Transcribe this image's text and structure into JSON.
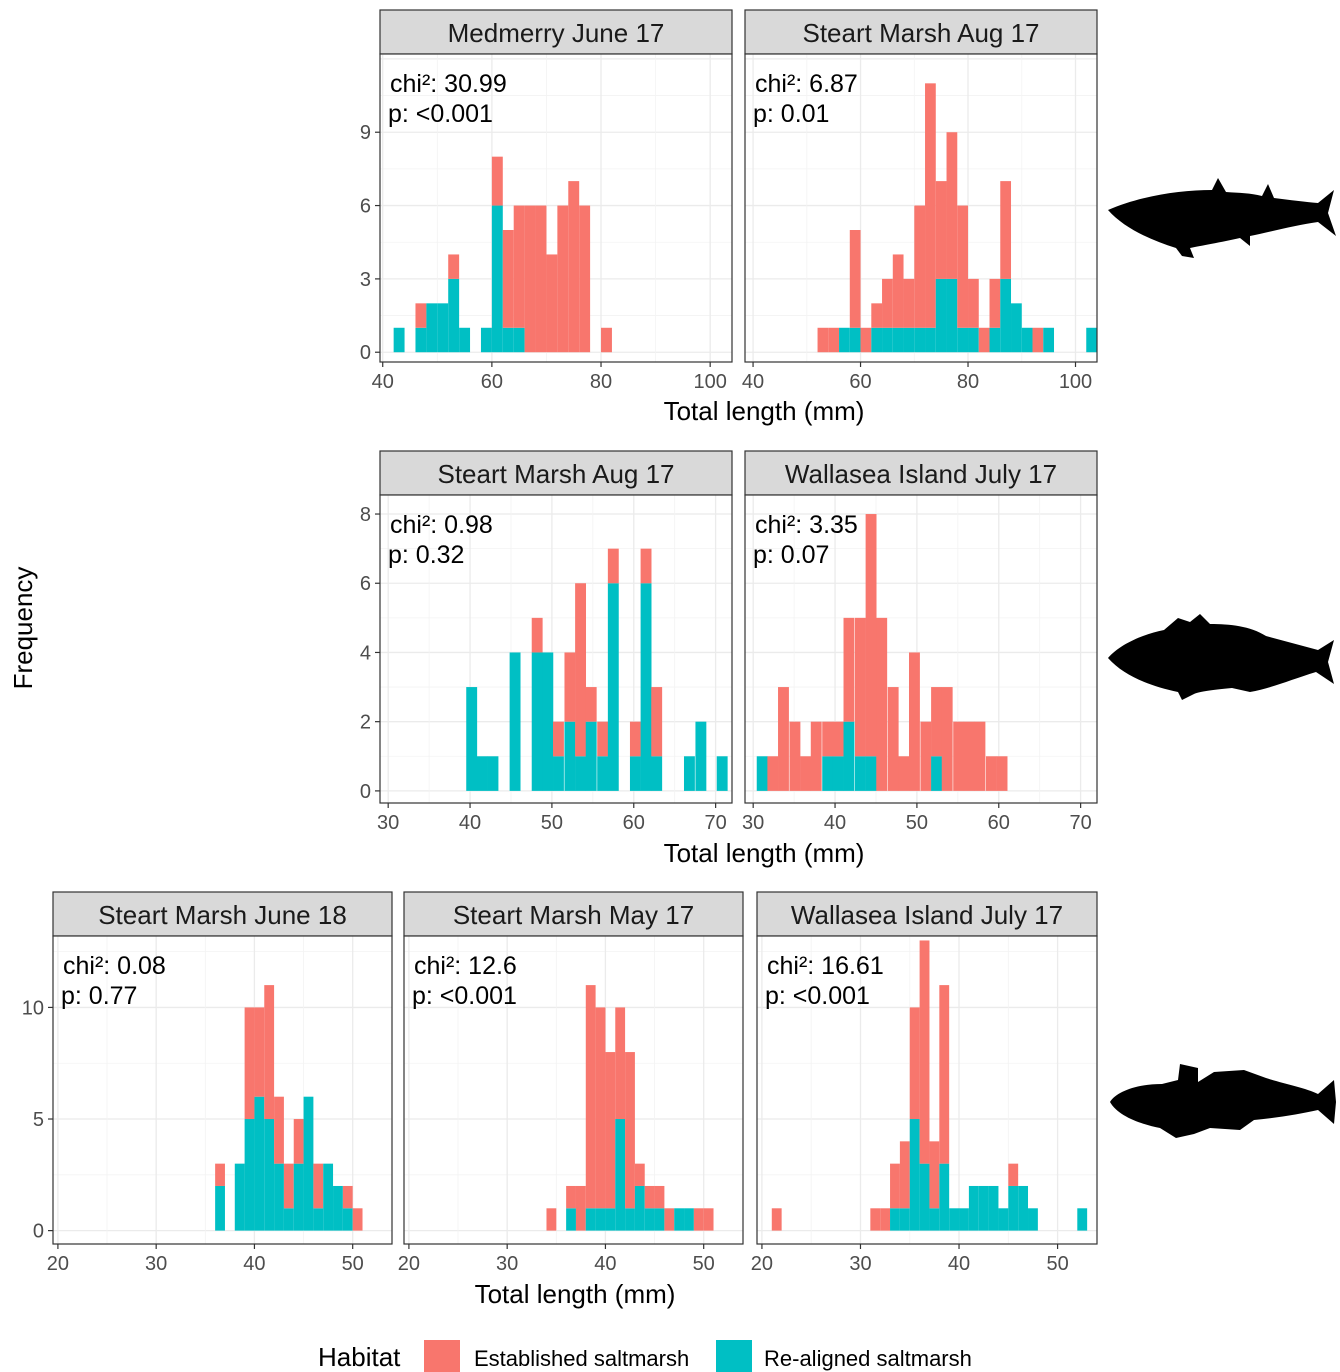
{
  "figure": {
    "y_axis_label": "Frequency",
    "x_axis_label": "Total length (mm)",
    "legend": {
      "title": "Habitat",
      "items": [
        {
          "name": "Established saltmarsh",
          "color": "#F8766D"
        },
        {
          "name": "Re-aligned saltmarsh",
          "color": "#00BFC4"
        }
      ]
    },
    "fish_icons": [
      "mullet-silhouette-icon",
      "sea-bass-silhouette-icon",
      "goby-silhouette-icon"
    ]
  },
  "chart_data": [
    {
      "type": "bar",
      "stacked": true,
      "title": "Medmerry June 17",
      "stat_chi": "chi²: 30.99",
      "stat_p": "p: <0.001",
      "xlabel": "Total length (mm)",
      "ylabel": "Frequency",
      "xlim": [
        39.5,
        104
      ],
      "ylim": [
        -0.4,
        12.2
      ],
      "xticks": [
        40,
        60,
        80,
        100
      ],
      "yticks": [
        0,
        3,
        6,
        9
      ],
      "bin_width": 2,
      "bins": [
        {
          "x": 43,
          "established": 0,
          "realigned": 1
        },
        {
          "x": 47,
          "established": 1,
          "realigned": 1
        },
        {
          "x": 49,
          "established": 0,
          "realigned": 2
        },
        {
          "x": 51,
          "established": 0,
          "realigned": 2
        },
        {
          "x": 53,
          "established": 1,
          "realigned": 3
        },
        {
          "x": 55,
          "established": 0,
          "realigned": 1
        },
        {
          "x": 59,
          "established": 0,
          "realigned": 1
        },
        {
          "x": 61,
          "established": 2,
          "realigned": 6
        },
        {
          "x": 63,
          "established": 4,
          "realigned": 1
        },
        {
          "x": 65,
          "established": 5,
          "realigned": 1
        },
        {
          "x": 67,
          "established": 6,
          "realigned": 0
        },
        {
          "x": 69,
          "established": 6,
          "realigned": 0
        },
        {
          "x": 71,
          "established": 4,
          "realigned": 0
        },
        {
          "x": 73,
          "established": 6,
          "realigned": 0
        },
        {
          "x": 75,
          "established": 7,
          "realigned": 0
        },
        {
          "x": 77,
          "established": 6,
          "realigned": 0
        },
        {
          "x": 81,
          "established": 1,
          "realigned": 0
        }
      ]
    },
    {
      "type": "bar",
      "stacked": true,
      "title": "Steart Marsh Aug 17",
      "stat_chi": "chi²: 6.87",
      "stat_p": "p: 0.01",
      "xlabel": "Total length (mm)",
      "ylabel": "Frequency",
      "xlim": [
        38.5,
        104
      ],
      "ylim": [
        -0.4,
        12.2
      ],
      "xticks": [
        40,
        60,
        80,
        100
      ],
      "yticks": [
        0,
        3,
        6,
        9
      ],
      "bin_width": 2,
      "bins": [
        {
          "x": 53,
          "established": 1,
          "realigned": 0
        },
        {
          "x": 55,
          "established": 1,
          "realigned": 0
        },
        {
          "x": 57,
          "established": 0,
          "realigned": 1
        },
        {
          "x": 59,
          "established": 4,
          "realigned": 1
        },
        {
          "x": 61,
          "established": 1,
          "realigned": 0
        },
        {
          "x": 63,
          "established": 1,
          "realigned": 1
        },
        {
          "x": 65,
          "established": 2,
          "realigned": 1
        },
        {
          "x": 67,
          "established": 3,
          "realigned": 1
        },
        {
          "x": 69,
          "established": 2,
          "realigned": 1
        },
        {
          "x": 71,
          "established": 5,
          "realigned": 1
        },
        {
          "x": 73,
          "established": 10,
          "realigned": 1
        },
        {
          "x": 75,
          "established": 4,
          "realigned": 3
        },
        {
          "x": 77,
          "established": 6,
          "realigned": 3
        },
        {
          "x": 79,
          "established": 5,
          "realigned": 1
        },
        {
          "x": 81,
          "established": 2,
          "realigned": 1
        },
        {
          "x": 83,
          "established": 1,
          "realigned": 0
        },
        {
          "x": 85,
          "established": 2,
          "realigned": 1
        },
        {
          "x": 87,
          "established": 4,
          "realigned": 3
        },
        {
          "x": 89,
          "established": 0,
          "realigned": 2
        },
        {
          "x": 91,
          "established": 0,
          "realigned": 1
        },
        {
          "x": 93,
          "established": 1,
          "realigned": 0
        },
        {
          "x": 95,
          "established": 0,
          "realigned": 1
        },
        {
          "x": 103,
          "established": 0,
          "realigned": 1
        }
      ]
    },
    {
      "type": "bar",
      "stacked": true,
      "title": "Steart Marsh Aug 17",
      "stat_chi": "chi²: 0.98",
      "stat_p": "p: 0.32",
      "xlabel": "Total length (mm)",
      "ylabel": "Frequency",
      "xlim": [
        29,
        72
      ],
      "ylim": [
        -0.35,
        8.55
      ],
      "xticks": [
        30,
        40,
        50,
        60,
        70
      ],
      "yticks": [
        0,
        2,
        4,
        6,
        8
      ],
      "bin_width": 1.33,
      "bins": [
        {
          "x": 40.2,
          "established": 0,
          "realigned": 3
        },
        {
          "x": 41.5,
          "established": 0,
          "realigned": 1
        },
        {
          "x": 42.8,
          "established": 0,
          "realigned": 1
        },
        {
          "x": 45.5,
          "established": 0,
          "realigned": 4
        },
        {
          "x": 48.2,
          "established": 1,
          "realigned": 4
        },
        {
          "x": 49.5,
          "established": 0,
          "realigned": 4
        },
        {
          "x": 50.8,
          "established": 1,
          "realigned": 1
        },
        {
          "x": 52.2,
          "established": 2,
          "realigned": 2
        },
        {
          "x": 53.5,
          "established": 5,
          "realigned": 1
        },
        {
          "x": 54.8,
          "established": 1,
          "realigned": 2
        },
        {
          "x": 56.2,
          "established": 1,
          "realigned": 1
        },
        {
          "x": 57.5,
          "established": 1,
          "realigned": 6
        },
        {
          "x": 60.2,
          "established": 1,
          "realigned": 1
        },
        {
          "x": 61.5,
          "established": 1,
          "realigned": 6
        },
        {
          "x": 62.8,
          "established": 2,
          "realigned": 1
        },
        {
          "x": 66.8,
          "established": 0,
          "realigned": 1
        },
        {
          "x": 68.2,
          "established": 0,
          "realigned": 2
        },
        {
          "x": 70.8,
          "established": 0,
          "realigned": 1
        }
      ]
    },
    {
      "type": "bar",
      "stacked": true,
      "title": "Wallasea Island July 17",
      "stat_chi": "chi²: 3.35",
      "stat_p": "p: 0.07",
      "xlabel": "Total length (mm)",
      "ylabel": "Frequency",
      "xlim": [
        29,
        72
      ],
      "ylim": [
        -0.35,
        8.55
      ],
      "xticks": [
        30,
        40,
        50,
        60,
        70
      ],
      "yticks": [
        0,
        2,
        4,
        6,
        8
      ],
      "bin_width": 1.33,
      "bins": [
        {
          "x": 31.1,
          "established": 0,
          "realigned": 1
        },
        {
          "x": 32.4,
          "established": 1,
          "realigned": 0
        },
        {
          "x": 33.7,
          "established": 3,
          "realigned": 0
        },
        {
          "x": 35.1,
          "established": 2,
          "realigned": 0
        },
        {
          "x": 36.4,
          "established": 1,
          "realigned": 0
        },
        {
          "x": 37.7,
          "established": 2,
          "realigned": 0
        },
        {
          "x": 39.1,
          "established": 1,
          "realigned": 1
        },
        {
          "x": 40.4,
          "established": 1,
          "realigned": 1
        },
        {
          "x": 41.7,
          "established": 3,
          "realigned": 2
        },
        {
          "x": 43.1,
          "established": 4,
          "realigned": 1
        },
        {
          "x": 44.4,
          "established": 7,
          "realigned": 1
        },
        {
          "x": 45.7,
          "established": 5,
          "realigned": 0
        },
        {
          "x": 47.1,
          "established": 3,
          "realigned": 0
        },
        {
          "x": 48.4,
          "established": 1,
          "realigned": 0
        },
        {
          "x": 49.7,
          "established": 4,
          "realigned": 0
        },
        {
          "x": 51.1,
          "established": 2,
          "realigned": 0
        },
        {
          "x": 52.4,
          "established": 2,
          "realigned": 1
        },
        {
          "x": 53.7,
          "established": 3,
          "realigned": 0
        },
        {
          "x": 55.1,
          "established": 2,
          "realigned": 0
        },
        {
          "x": 56.4,
          "established": 2,
          "realigned": 0
        },
        {
          "x": 57.7,
          "established": 2,
          "realigned": 0
        },
        {
          "x": 59.1,
          "established": 1,
          "realigned": 0
        },
        {
          "x": 60.4,
          "established": 1,
          "realigned": 0
        }
      ]
    },
    {
      "type": "bar",
      "stacked": true,
      "title": "Steart Marsh June 18",
      "stat_chi": "chi²: 0.08",
      "stat_p": "p: 0.77",
      "xlabel": "Total length (mm)",
      "ylabel": "Frequency",
      "xlim": [
        19.5,
        54
      ],
      "ylim": [
        -0.6,
        13.2
      ],
      "xticks": [
        20,
        30,
        40,
        50
      ],
      "yticks": [
        0,
        5,
        10
      ],
      "bin_width": 1,
      "bins": [
        {
          "x": 36.5,
          "established": 1,
          "realigned": 2
        },
        {
          "x": 38.5,
          "established": 0,
          "realigned": 3
        },
        {
          "x": 39.5,
          "established": 5,
          "realigned": 5
        },
        {
          "x": 40.5,
          "established": 4,
          "realigned": 6
        },
        {
          "x": 41.5,
          "established": 6,
          "realigned": 5
        },
        {
          "x": 42.5,
          "established": 3,
          "realigned": 3
        },
        {
          "x": 43.5,
          "established": 2,
          "realigned": 1
        },
        {
          "x": 44.5,
          "established": 2,
          "realigned": 3
        },
        {
          "x": 45.5,
          "established": 0,
          "realigned": 6
        },
        {
          "x": 46.5,
          "established": 2,
          "realigned": 1
        },
        {
          "x": 47.5,
          "established": 0,
          "realigned": 3
        },
        {
          "x": 48.5,
          "established": 0,
          "realigned": 2
        },
        {
          "x": 49.5,
          "established": 1,
          "realigned": 1
        },
        {
          "x": 50.5,
          "established": 1,
          "realigned": 0
        }
      ]
    },
    {
      "type": "bar",
      "stacked": true,
      "title": "Steart Marsh May 17",
      "stat_chi": "chi²: 12.6",
      "stat_p": "p: <0.001",
      "xlabel": "Total length (mm)",
      "ylabel": "Frequency",
      "xlim": [
        19.5,
        54
      ],
      "ylim": [
        -0.6,
        13.2
      ],
      "xticks": [
        20,
        30,
        40,
        50
      ],
      "yticks": [
        0,
        5,
        10
      ],
      "bin_width": 1,
      "bins": [
        {
          "x": 34.5,
          "established": 1,
          "realigned": 0
        },
        {
          "x": 36.5,
          "established": 1,
          "realigned": 1
        },
        {
          "x": 37.5,
          "established": 2,
          "realigned": 0
        },
        {
          "x": 38.5,
          "established": 10,
          "realigned": 1
        },
        {
          "x": 39.5,
          "established": 9,
          "realigned": 1
        },
        {
          "x": 40.5,
          "established": 7,
          "realigned": 1
        },
        {
          "x": 41.5,
          "established": 5,
          "realigned": 5
        },
        {
          "x": 42.5,
          "established": 7,
          "realigned": 1
        },
        {
          "x": 43.5,
          "established": 1,
          "realigned": 2
        },
        {
          "x": 44.5,
          "established": 1,
          "realigned": 1
        },
        {
          "x": 45.5,
          "established": 1,
          "realigned": 1
        },
        {
          "x": 46.5,
          "established": 1,
          "realigned": 0
        },
        {
          "x": 47.5,
          "established": 0,
          "realigned": 1
        },
        {
          "x": 48.5,
          "established": 0,
          "realigned": 1
        },
        {
          "x": 49.5,
          "established": 1,
          "realigned": 0
        },
        {
          "x": 50.5,
          "established": 1,
          "realigned": 0
        }
      ]
    },
    {
      "type": "bar",
      "stacked": true,
      "title": "Wallasea Island July 17",
      "stat_chi": "chi²: 16.61",
      "stat_p": "p: <0.001",
      "xlabel": "Total length (mm)",
      "ylabel": "Frequency",
      "xlim": [
        19.5,
        54
      ],
      "ylim": [
        -0.6,
        13.2
      ],
      "xticks": [
        20,
        30,
        40,
        50
      ],
      "yticks": [
        0,
        5,
        10
      ],
      "bin_width": 1,
      "bins": [
        {
          "x": 21.5,
          "established": 1,
          "realigned": 0
        },
        {
          "x": 31.5,
          "established": 1,
          "realigned": 0
        },
        {
          "x": 32.5,
          "established": 1,
          "realigned": 0
        },
        {
          "x": 33.5,
          "established": 2,
          "realigned": 1
        },
        {
          "x": 34.5,
          "established": 3,
          "realigned": 1
        },
        {
          "x": 35.5,
          "established": 5,
          "realigned": 5
        },
        {
          "x": 36.5,
          "established": 10,
          "realigned": 3
        },
        {
          "x": 37.5,
          "established": 3,
          "realigned": 1
        },
        {
          "x": 38.5,
          "established": 8,
          "realigned": 3
        },
        {
          "x": 39.5,
          "established": 0,
          "realigned": 1
        },
        {
          "x": 40.5,
          "established": 0,
          "realigned": 1
        },
        {
          "x": 41.5,
          "established": 0,
          "realigned": 2
        },
        {
          "x": 42.5,
          "established": 0,
          "realigned": 2
        },
        {
          "x": 43.5,
          "established": 0,
          "realigned": 2
        },
        {
          "x": 44.5,
          "established": 0,
          "realigned": 1
        },
        {
          "x": 45.5,
          "established": 1,
          "realigned": 2
        },
        {
          "x": 46.5,
          "established": 0,
          "realigned": 2
        },
        {
          "x": 47.5,
          "established": 0,
          "realigned": 1
        },
        {
          "x": 52.5,
          "established": 0,
          "realigned": 1
        }
      ]
    }
  ]
}
